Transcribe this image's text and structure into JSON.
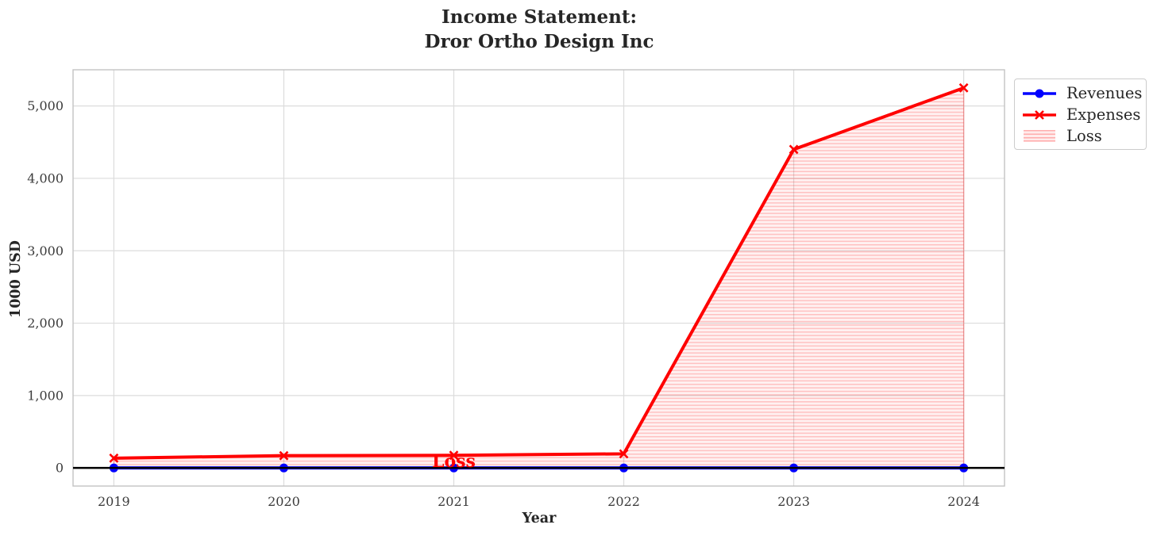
{
  "chart_data": {
    "type": "line",
    "title_lines": [
      "Income Statement:",
      "Dror Ortho Design Inc"
    ],
    "xlabel": "Year",
    "ylabel": "1000 USD",
    "x": [
      2019,
      2020,
      2021,
      2022,
      2023,
      2024
    ],
    "xtick_labels": [
      "2019",
      "2020",
      "2021",
      "2022",
      "2023",
      "2024"
    ],
    "yticks": [
      0,
      1000,
      2000,
      3000,
      4000,
      5000
    ],
    "ytick_labels": [
      "0",
      "1,000",
      "2,000",
      "3,000",
      "4,000",
      "5,000"
    ],
    "xlim": [
      2018.76,
      2024.24
    ],
    "ylim": [
      -250,
      5500
    ],
    "grid": true,
    "series": [
      {
        "name": "Revenues",
        "color": "#0000ff",
        "marker": "circle",
        "values": [
          0,
          0,
          0,
          0,
          0,
          0
        ]
      },
      {
        "name": "Expenses",
        "color": "#ff0000",
        "marker": "x",
        "values": [
          135,
          170,
          175,
          195,
          4400,
          5250
        ]
      }
    ],
    "loss": {
      "label": "Loss",
      "type": "fill_between",
      "between": [
        "Revenues",
        "Expenses"
      ],
      "hatch": "horizontal",
      "fill_base": "rgba(255,0,0,0.055)",
      "fill_line": "rgba(255,0,0,0.20)",
      "edge": "rgba(255,0,0,0.30)"
    },
    "annotation": {
      "text": "Loss",
      "x": 2021,
      "y": 78,
      "color": "#ff0000"
    },
    "zero_line": {
      "y": 0,
      "color": "#000000"
    },
    "colors": {
      "grid": "#dcdcdc",
      "spine": "#c3c3c3",
      "title_text": "#262626",
      "tick_text": "#3b3b3b"
    },
    "legend": {
      "position": "outside-top-right",
      "entries": [
        "Revenues",
        "Expenses",
        "Loss"
      ]
    }
  }
}
